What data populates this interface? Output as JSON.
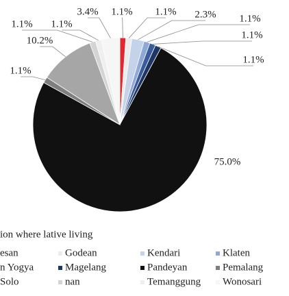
{
  "chart_data": {
    "type": "pie",
    "legend_title": "ion where lative living",
    "categories": [
      "esan",
      "Godean",
      "Kendari",
      "Klaten",
      "n Yogya",
      "Magelang",
      "Pandeyan",
      "Pemalang",
      "Solo",
      "nan",
      "Temanggung",
      "Wonosari"
    ],
    "values": [
      1.1,
      1.1,
      2.3,
      1.1,
      1.1,
      1.1,
      75.0,
      1.1,
      10.2,
      1.1,
      1.1,
      3.4
    ],
    "value_labels": [
      "1.1%",
      "1.1%",
      "2.3%",
      "1.1%",
      "1.1%",
      "1.1%",
      "75.0%",
      "1.1%",
      "10.2%",
      "1.1%",
      "1.1%",
      "3.4%"
    ],
    "colors": [
      "#e0282e",
      "#ececec",
      "#c5d3ea",
      "#8fa9d6",
      "#3a5b9c",
      "#1f3764",
      "#111111",
      "#7f7f7f",
      "#a6a6a6",
      "#d4d4d4",
      "#efefef",
      "#f6f6f6"
    ]
  }
}
